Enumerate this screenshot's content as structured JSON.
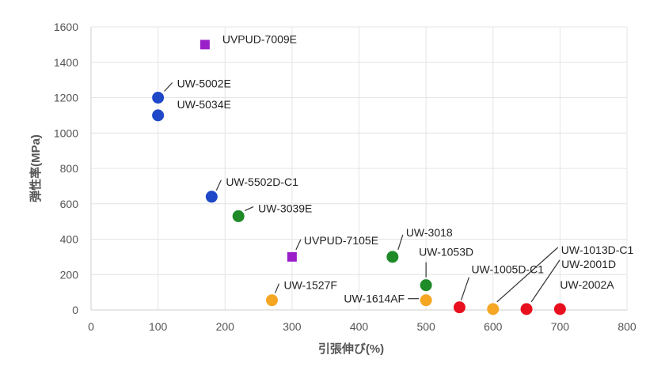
{
  "chart_data": {
    "type": "scatter",
    "xlabel": "引張伸び(%)",
    "ylabel": "弾性率(MPa)",
    "xlim": [
      0,
      800
    ],
    "ylim": [
      0,
      1600
    ],
    "xticks": [
      "0",
      "100",
      "200",
      "300",
      "400",
      "500",
      "600",
      "700",
      "800"
    ],
    "yticks": [
      "0",
      "200",
      "400",
      "600",
      "800",
      "1000",
      "1200",
      "1400",
      "1600"
    ],
    "grid": true,
    "legend": "none",
    "colors": {
      "purple": "#9b1fc8",
      "blue": "#1f48c8",
      "green": "#1e8a28",
      "orange": "#f5a623",
      "red": "#e8101e"
    },
    "points": [
      {
        "label": "UVPUD-7009E",
        "x": 170,
        "y": 1500,
        "color": "purple",
        "shape": "square"
      },
      {
        "label": "UW-5002E",
        "x": 100,
        "y": 1200,
        "color": "blue",
        "shape": "circle"
      },
      {
        "label": "UW-5034E",
        "x": 100,
        "y": 1100,
        "color": "blue",
        "shape": "circle"
      },
      {
        "label": "UW-5502D-C1",
        "x": 180,
        "y": 640,
        "color": "blue",
        "shape": "circle"
      },
      {
        "label": "UW-3039E",
        "x": 220,
        "y": 530,
        "color": "green",
        "shape": "circle"
      },
      {
        "label": "UVPUD-7105E",
        "x": 300,
        "y": 300,
        "color": "purple",
        "shape": "square"
      },
      {
        "label": "UW-3018",
        "x": 450,
        "y": 300,
        "color": "green",
        "shape": "circle"
      },
      {
        "label": "UW-1053D",
        "x": 500,
        "y": 140,
        "color": "green",
        "shape": "circle"
      },
      {
        "label": "UW-1527F",
        "x": 270,
        "y": 55,
        "color": "orange",
        "shape": "circle"
      },
      {
        "label": "UW-1614AF",
        "x": 500,
        "y": 55,
        "color": "orange",
        "shape": "circle"
      },
      {
        "label": "UW-1005D-C1",
        "x": 550,
        "y": 15,
        "color": "red",
        "shape": "circle"
      },
      {
        "label": "UW-1013D-C1",
        "x": 600,
        "y": 5,
        "color": "orange",
        "shape": "circle"
      },
      {
        "label": "UW-2001D",
        "x": 650,
        "y": 5,
        "color": "red",
        "shape": "circle"
      },
      {
        "label": "UW-2002A",
        "x": 700,
        "y": 5,
        "color": "red",
        "shape": "circle"
      }
    ]
  }
}
